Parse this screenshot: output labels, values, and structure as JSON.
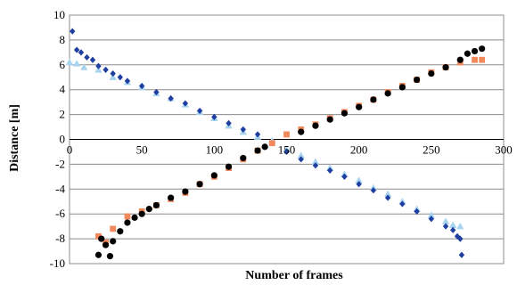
{
  "chart_data": {
    "type": "scatter",
    "xlabel": "Number of frames",
    "ylabel": "Distance [m]",
    "xlim": [
      0,
      300
    ],
    "ylim": [
      -10,
      10
    ],
    "xticks": [
      0,
      50,
      100,
      150,
      200,
      250,
      300
    ],
    "yticks": [
      10,
      8,
      6,
      4,
      2,
      0,
      -2,
      -4,
      -6,
      -8,
      -10
    ],
    "grid": true,
    "legend": "none",
    "series": [
      {
        "color": "#a9d4ef",
        "marker": "triangle",
        "x": [
          0,
          5,
          10,
          20,
          30,
          40,
          50,
          60,
          70,
          80,
          90,
          100,
          110,
          120,
          130,
          140,
          150,
          160,
          170,
          180,
          190,
          200,
          210,
          220,
          230,
          240,
          250,
          260,
          265,
          270
        ],
        "y": [
          6.2,
          6.1,
          5.8,
          5.6,
          5.0,
          4.6,
          4.2,
          3.7,
          3.3,
          2.8,
          2.2,
          1.7,
          1.1,
          0.6,
          0.2,
          -0.1,
          -0.8,
          -1.3,
          -1.8,
          -2.3,
          -2.8,
          -3.3,
          -3.9,
          -4.4,
          -5.0,
          -5.6,
          -6.1,
          -6.6,
          -6.9,
          -7.0
        ]
      },
      {
        "color": "#1f3fa0",
        "marker": "diamond",
        "x": [
          2,
          5,
          8,
          12,
          16,
          20,
          25,
          30,
          35,
          40,
          50,
          60,
          70,
          80,
          90,
          100,
          110,
          120,
          130,
          140,
          150,
          160,
          170,
          180,
          190,
          200,
          210,
          220,
          230,
          240,
          250,
          260,
          265,
          268,
          270,
          271
        ],
        "y": [
          8.7,
          7.2,
          7.0,
          6.6,
          6.4,
          5.9,
          5.6,
          5.3,
          5.0,
          4.7,
          4.3,
          3.8,
          3.3,
          2.9,
          2.3,
          1.8,
          1.3,
          0.8,
          0.4,
          -0.3,
          -1.0,
          -1.6,
          -2.1,
          -2.5,
          -3.0,
          -3.6,
          -4.1,
          -4.7,
          -5.2,
          -5.8,
          -6.4,
          -7.0,
          -7.3,
          -7.8,
          -8.0,
          -9.3
        ]
      },
      {
        "color": "#f08a5d",
        "marker": "square",
        "x": [
          20,
          25,
          30,
          40,
          50,
          60,
          70,
          80,
          90,
          100,
          110,
          120,
          130,
          140,
          150,
          160,
          170,
          180,
          190,
          200,
          210,
          220,
          230,
          240,
          250,
          260,
          270,
          280,
          285
        ],
        "y": [
          -7.8,
          -8.3,
          -7.2,
          -6.2,
          -5.8,
          -5.3,
          -4.8,
          -4.3,
          -3.6,
          -3.0,
          -2.3,
          -1.6,
          -0.9,
          -0.3,
          0.4,
          0.8,
          1.2,
          1.7,
          2.2,
          2.7,
          3.2,
          3.8,
          4.3,
          4.8,
          5.4,
          5.8,
          6.2,
          6.4,
          6.4
        ]
      },
      {
        "color": "#000000",
        "marker": "circle",
        "x": [
          20,
          22,
          25,
          28,
          30,
          35,
          40,
          45,
          50,
          55,
          60,
          70,
          80,
          90,
          100,
          110,
          120,
          130,
          135,
          160,
          170,
          180,
          190,
          200,
          210,
          220,
          230,
          240,
          250,
          260,
          270,
          275,
          280,
          285
        ],
        "y": [
          -9.3,
          -8.0,
          -8.5,
          -9.4,
          -8.2,
          -7.4,
          -6.7,
          -6.3,
          -6.0,
          -5.6,
          -5.3,
          -4.7,
          -4.2,
          -3.6,
          -2.9,
          -2.2,
          -1.5,
          -0.9,
          -0.6,
          0.6,
          1.1,
          1.6,
          2.1,
          2.6,
          3.2,
          3.7,
          4.2,
          4.8,
          5.3,
          5.8,
          6.4,
          6.9,
          7.1,
          7.3
        ]
      }
    ]
  }
}
